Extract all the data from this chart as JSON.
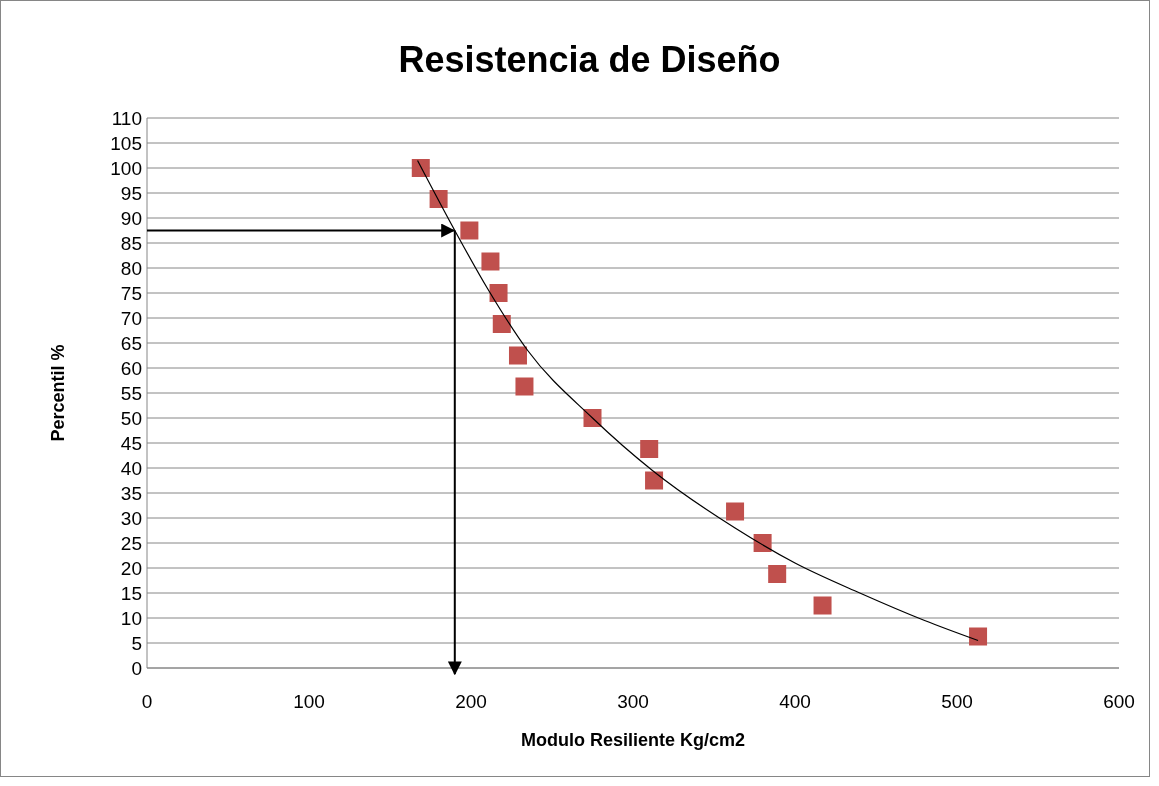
{
  "chart_data": {
    "type": "scatter",
    "title": "Resistencia de Diseño",
    "xlabel": "Modulo Resiliente Kg/cm2",
    "ylabel": "Percentil %",
    "xlim": [
      0,
      600
    ],
    "xticks": [
      0,
      100,
      200,
      300,
      400,
      500,
      600
    ],
    "ylim": [
      0,
      110
    ],
    "yticks": [
      0,
      5,
      10,
      15,
      20,
      25,
      30,
      35,
      40,
      45,
      50,
      55,
      60,
      65,
      70,
      75,
      80,
      85,
      90,
      95,
      100,
      105,
      110
    ],
    "grid": "y",
    "series": [
      {
        "marker": "square",
        "color": "#c0504d",
        "x": [
          169,
          180,
          199,
          212,
          217,
          219,
          229,
          233,
          275,
          310,
          313,
          363,
          380,
          389,
          417,
          513
        ],
        "values": [
          100,
          93.8,
          87.5,
          81.3,
          75,
          68.8,
          62.5,
          56.3,
          50,
          43.8,
          37.5,
          31.3,
          25,
          18.8,
          12.5,
          6.3
        ]
      },
      {
        "type": "line",
        "marker": "none",
        "color": "#000000",
        "x": [
          167,
          190,
          210,
          235,
          275,
          312,
          363,
          400,
          440,
          480,
          513
        ],
        "values": [
          101.5,
          87.5,
          76,
          63.5,
          50,
          39.5,
          28,
          21,
          15,
          9.5,
          5.5
        ]
      }
    ],
    "ref_lines": [
      {
        "axis": "y",
        "value": 87.5,
        "color": "#000000"
      },
      {
        "axis": "x",
        "value": 190,
        "color": "#000000"
      }
    ]
  }
}
